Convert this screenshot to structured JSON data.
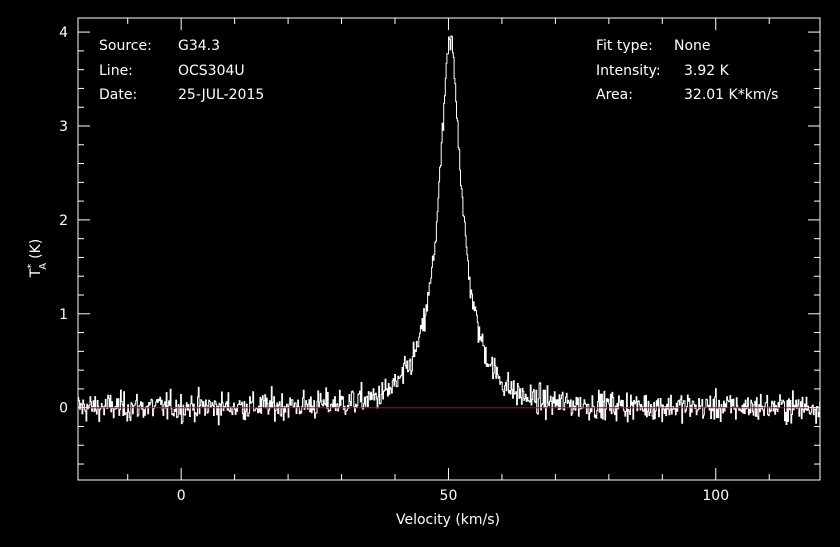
{
  "info": {
    "source_label": "Source:",
    "source_value": "G34.3",
    "line_label": "Line:",
    "line_value": "OCS304U",
    "date_label": "Date:",
    "date_value": "25-JUL-2015",
    "fit_label": "Fit type:",
    "fit_value": "None",
    "intensity_label": "Intensity:",
    "intensity_value": "3.92 K",
    "area_label": "Area:",
    "area_value": "32.01 K*km/s"
  },
  "colors": {
    "background": "#000000",
    "axes": "#ffffff",
    "spectrum": "#ffffff",
    "baseline": "#cc0000"
  },
  "chart_data": {
    "type": "line",
    "style": "histogram",
    "xlabel": "Velocity (km/s)",
    "ylabel_main": "T",
    "ylabel_sup": "*",
    "ylabel_sub": "A",
    "ylabel_unit": "(K)",
    "xlim": [
      -19.3,
      119.5
    ],
    "ylim": [
      -0.77,
      4.15
    ],
    "x_ticks": [
      0,
      50,
      100
    ],
    "y_ticks": [
      0,
      1,
      2,
      3,
      4
    ],
    "baseline_y": 0,
    "peak": {
      "x": 50.2,
      "y": 3.92
    },
    "noise_rms": 0.1,
    "x_step": 0.15,
    "components": [
      {
        "center": 50.3,
        "amplitude": 3.55,
        "hwhm": 2.4,
        "profile": "lorentzian"
      },
      {
        "center": 50.3,
        "amplitude": 0.35,
        "hwhm": 6.5,
        "profile": "gaussian"
      }
    ],
    "grid": false,
    "legend": "none"
  }
}
